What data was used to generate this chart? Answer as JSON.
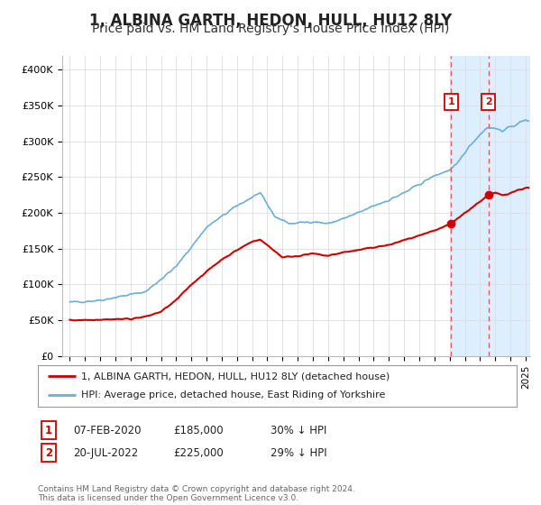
{
  "title": "1, ALBINA GARTH, HEDON, HULL, HU12 8LY",
  "subtitle": "Price paid vs. HM Land Registry's House Price Index (HPI)",
  "title_fontsize": 12,
  "subtitle_fontsize": 10,
  "ylabel_ticks": [
    "£0",
    "£50K",
    "£100K",
    "£150K",
    "£200K",
    "£250K",
    "£300K",
    "£350K",
    "£400K"
  ],
  "ytick_values": [
    0,
    50000,
    100000,
    150000,
    200000,
    250000,
    300000,
    350000,
    400000
  ],
  "ylim": [
    0,
    420000
  ],
  "xlim_start": 1994.5,
  "xlim_end": 2025.3,
  "hpi_color": "#6baed6",
  "price_color": "#cc0000",
  "dashed_color": "#e06060",
  "shade_color": "#ddeeff",
  "marker1_year": 2020.1,
  "marker1_price": 185000,
  "marker2_year": 2022.55,
  "marker2_price": 225000,
  "legend_label1": "1, ALBINA GARTH, HEDON, HULL, HU12 8LY (detached house)",
  "legend_label2": "HPI: Average price, detached house, East Riding of Yorkshire",
  "table_row1": [
    "1",
    "07-FEB-2020",
    "£185,000",
    "30% ↓ HPI"
  ],
  "table_row2": [
    "2",
    "20-JUL-2022",
    "£225,000",
    "29% ↓ HPI"
  ],
  "footnote": "Contains HM Land Registry data © Crown copyright and database right 2024.\nThis data is licensed under the Open Government Licence v3.0.",
  "background_color": "#ffffff",
  "grid_color": "#dddddd",
  "hpi_keypoints": [
    [
      1995,
      75000
    ],
    [
      1997,
      78000
    ],
    [
      2000,
      90000
    ],
    [
      2002,
      125000
    ],
    [
      2004,
      180000
    ],
    [
      2006,
      210000
    ],
    [
      2007.5,
      228000
    ],
    [
      2008.5,
      195000
    ],
    [
      2009.5,
      185000
    ],
    [
      2011,
      188000
    ],
    [
      2012,
      185000
    ],
    [
      2013,
      192000
    ],
    [
      2014,
      200000
    ],
    [
      2015,
      210000
    ],
    [
      2016,
      218000
    ],
    [
      2017,
      228000
    ],
    [
      2018,
      240000
    ],
    [
      2019,
      252000
    ],
    [
      2020,
      260000
    ],
    [
      2020.5,
      268000
    ],
    [
      2021,
      285000
    ],
    [
      2021.5,
      298000
    ],
    [
      2022,
      310000
    ],
    [
      2022.5,
      320000
    ],
    [
      2023,
      318000
    ],
    [
      2023.5,
      315000
    ],
    [
      2024,
      320000
    ],
    [
      2024.5,
      325000
    ],
    [
      2025,
      330000
    ]
  ],
  "price_keypoints": [
    [
      1995,
      50000
    ],
    [
      1997,
      51000
    ],
    [
      1999,
      52000
    ],
    [
      2000,
      55000
    ],
    [
      2001,
      62000
    ],
    [
      2002,
      78000
    ],
    [
      2003,
      100000
    ],
    [
      2004,
      118000
    ],
    [
      2005,
      135000
    ],
    [
      2006,
      148000
    ],
    [
      2007,
      160000
    ],
    [
      2007.5,
      163000
    ],
    [
      2008,
      155000
    ],
    [
      2009,
      138000
    ],
    [
      2010,
      140000
    ],
    [
      2011,
      143000
    ],
    [
      2012,
      140000
    ],
    [
      2013,
      145000
    ],
    [
      2014,
      148000
    ],
    [
      2015,
      152000
    ],
    [
      2016,
      155000
    ],
    [
      2017,
      162000
    ],
    [
      2018,
      168000
    ],
    [
      2019,
      175000
    ],
    [
      2020.1,
      185000
    ],
    [
      2020.5,
      192000
    ],
    [
      2021,
      200000
    ],
    [
      2021.5,
      208000
    ],
    [
      2022.55,
      225000
    ],
    [
      2023,
      228000
    ],
    [
      2023.5,
      225000
    ],
    [
      2024,
      228000
    ],
    [
      2024.5,
      232000
    ],
    [
      2025,
      235000
    ]
  ]
}
